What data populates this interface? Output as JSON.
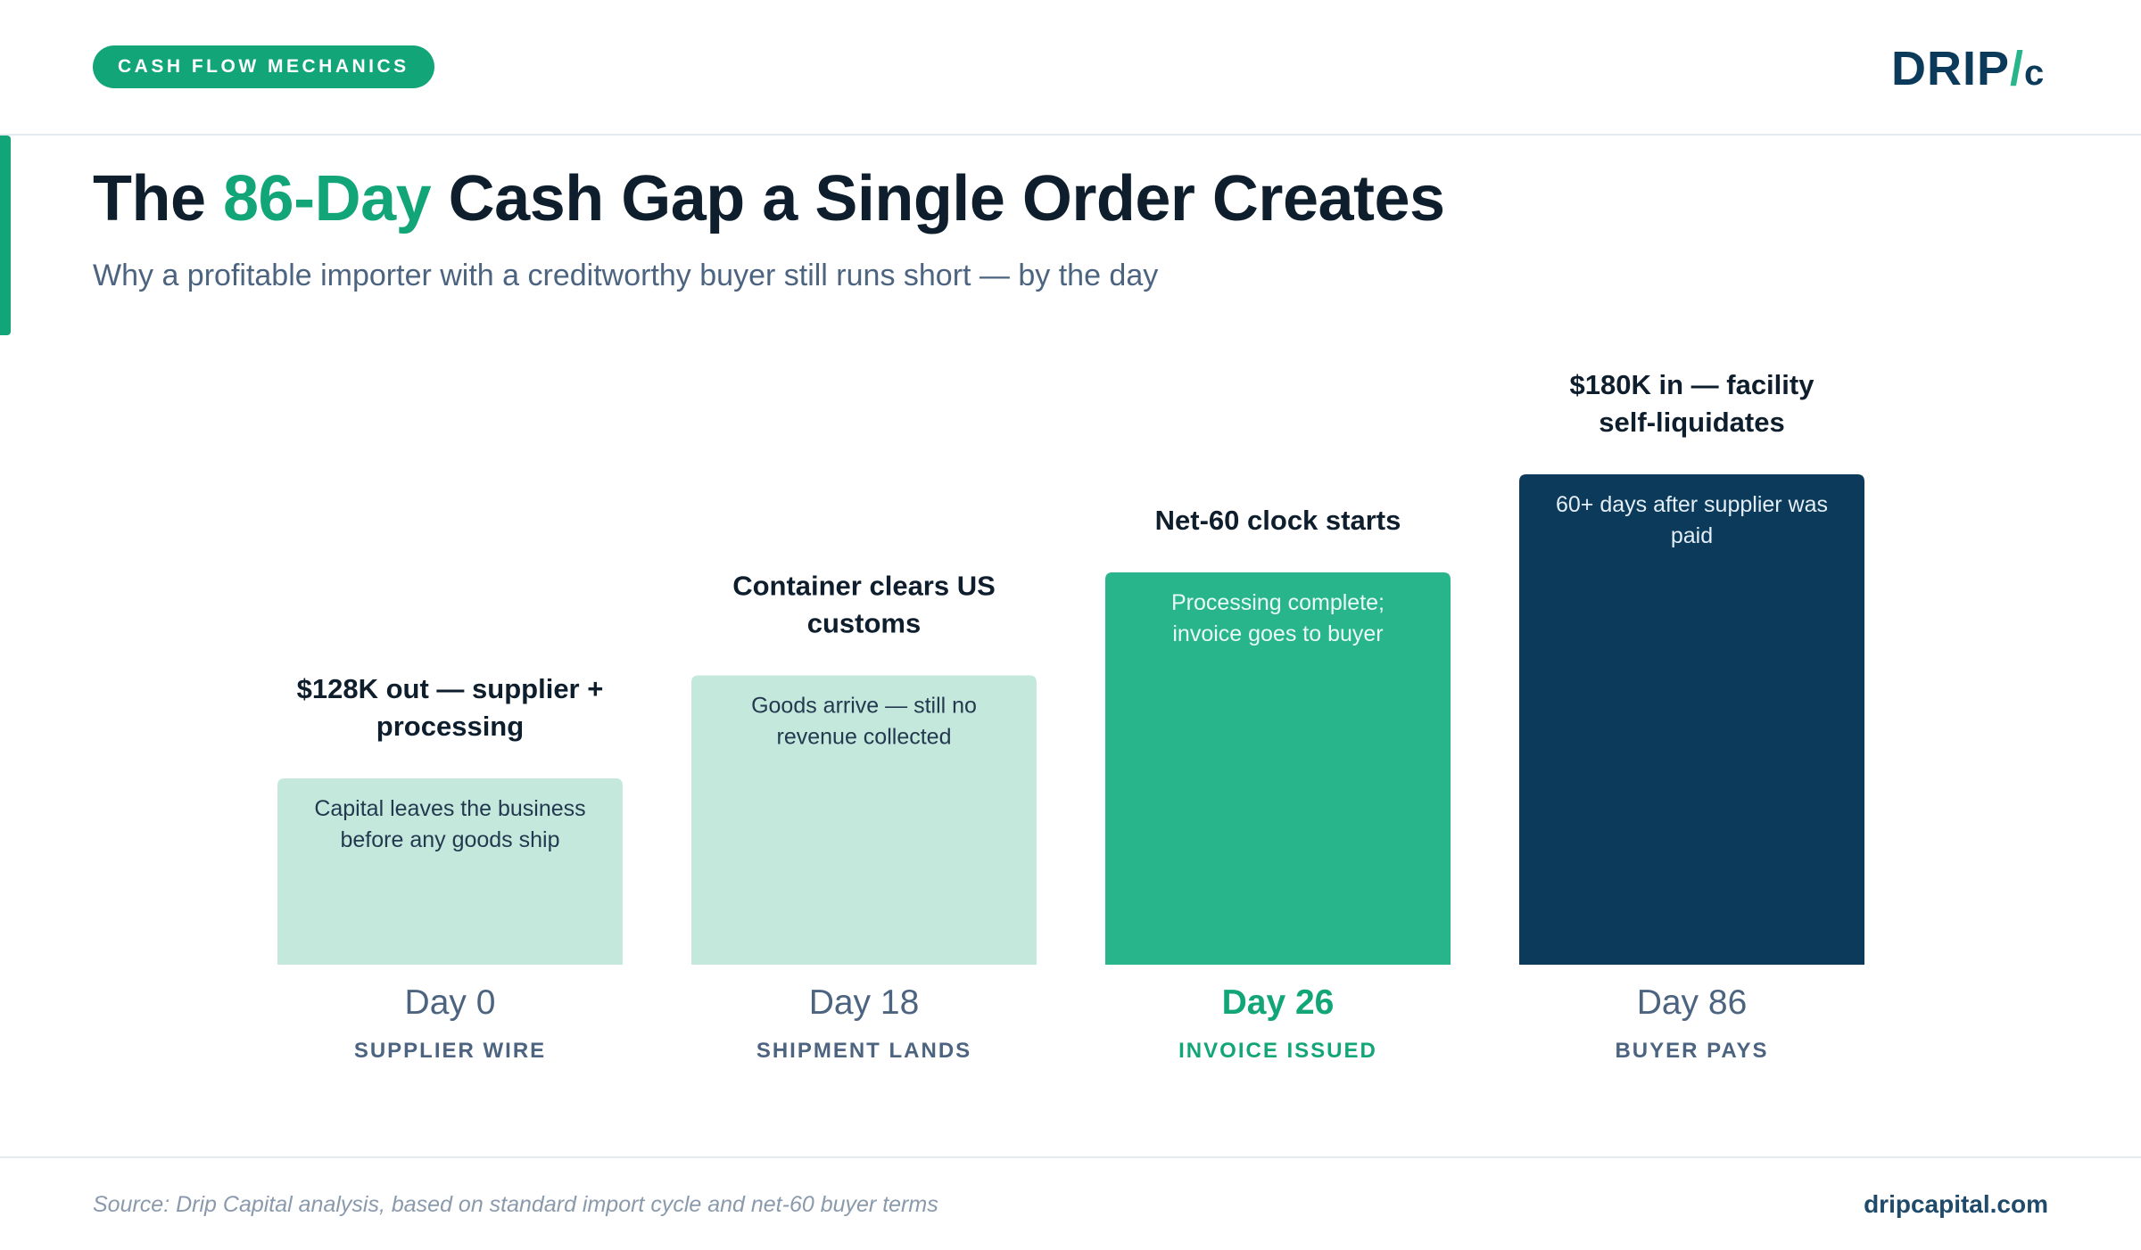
{
  "header": {
    "pill_label": "CASH FLOW MECHANICS",
    "logo_main": "DRIP",
    "logo_slash": "/",
    "logo_c": "c"
  },
  "title": {
    "before": "The ",
    "highlight": "86-Day",
    "after": " Cash Gap a Single Order Creates"
  },
  "subtitle": "Why a profitable importer with a creditworthy buyer still runs short — by the day",
  "colors": {
    "accent": "#12a578",
    "bar_light": "#c4e8dc",
    "bar_mid": "#29b58c",
    "bar_dark": "#0c3a5a",
    "title_dark": "#0e1e2d",
    "muted": "#4c6480"
  },
  "chart_data": {
    "type": "bar",
    "title": "",
    "xlabel": "",
    "ylabel": "",
    "ylim": [
      0,
      100
    ],
    "categories": [
      "Day 0",
      "Day 18",
      "Day 26",
      "Day 86"
    ],
    "sublabels": [
      "SUPPLIER WIRE",
      "SHIPMENT LANDS",
      "INVOICE ISSUED",
      "BUYER PAYS"
    ],
    "values": [
      38,
      59,
      80,
      100
    ],
    "top_labels": [
      [
        "$128K out — supplier +",
        "processing"
      ],
      [
        "Container clears US",
        "customs"
      ],
      [
        "Net-60 clock starts"
      ],
      [
        "$180K in — facility",
        "self-liquidates"
      ]
    ],
    "inner_labels": [
      [
        "Capital leaves the business",
        "before any goods ship"
      ],
      [
        "Goods arrive — still no",
        "revenue collected"
      ],
      [
        "Processing complete;",
        "invoice goes to buyer"
      ],
      [
        "60+ days after supplier was",
        "paid"
      ]
    ],
    "bar_colors": [
      "#c4e8dc",
      "#c4e8dc",
      "#29b58c",
      "#0c3a5a"
    ],
    "inner_text_colors": [
      "#23394f",
      "#23394f",
      "#eafaf4",
      "#e4eef6"
    ],
    "category_colors": [
      "#4c6480",
      "#4c6480",
      "#12a578",
      "#4c6480"
    ],
    "highlight_index": 2,
    "grid": false,
    "legend": "none"
  },
  "footer": {
    "source": "Source: Drip Capital analysis, based on standard import cycle and net-60 buyer terms",
    "site": "dripcapital.com"
  }
}
